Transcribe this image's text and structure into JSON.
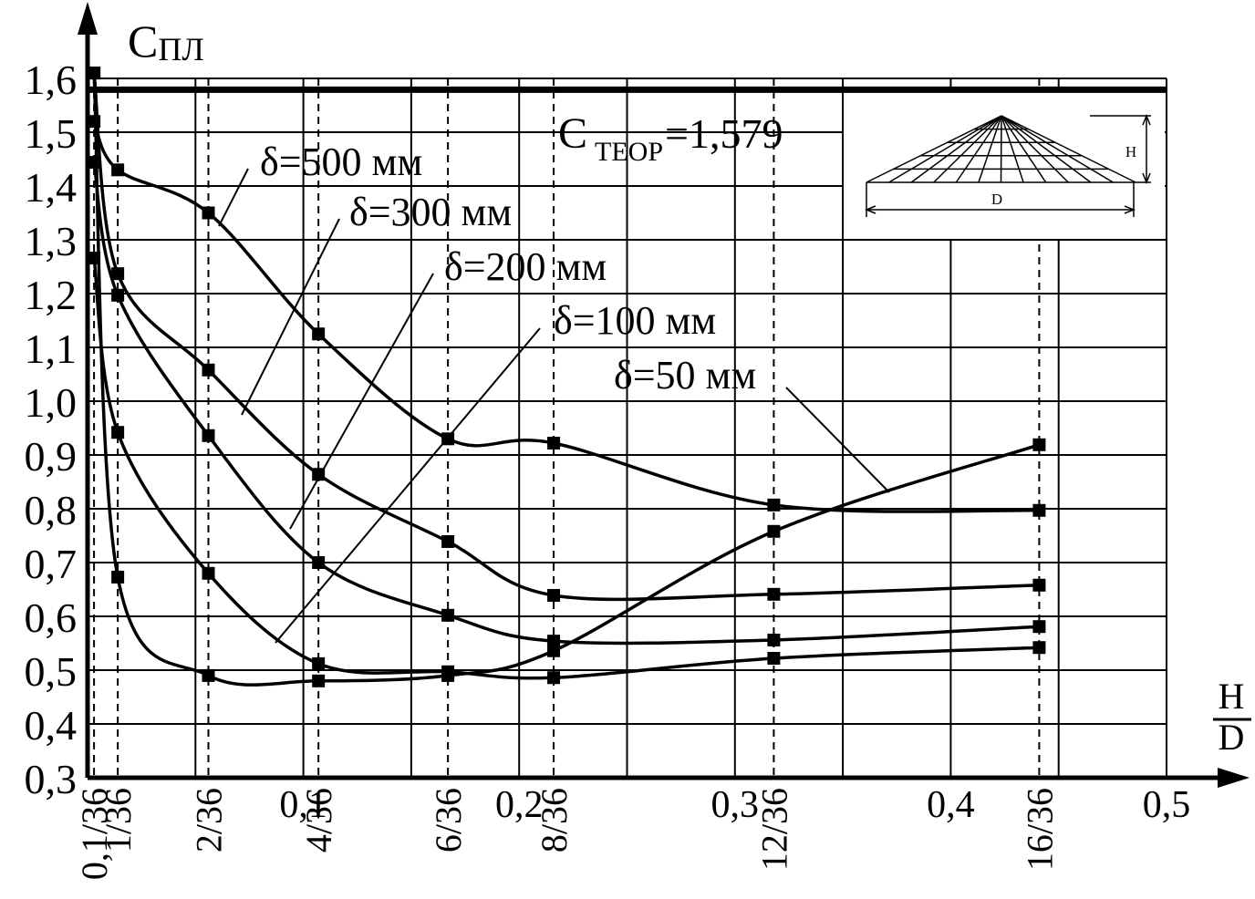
{
  "chart_data": {
    "type": "line",
    "y_label": {
      "symbol": "C",
      "subscript": "ПЛ"
    },
    "x_label": {
      "numerator": "H",
      "denominator": "D"
    },
    "xlim": [
      0,
      0.5
    ],
    "ylim": [
      0.3,
      1.6
    ],
    "xticks": [
      {
        "value": 0.1,
        "label": "0,1"
      },
      {
        "value": 0.2,
        "label": "0,2"
      },
      {
        "value": 0.3,
        "label": "0,3"
      },
      {
        "value": 0.4,
        "label": "0,4"
      },
      {
        "value": 0.5,
        "label": "0,5"
      }
    ],
    "xgrid": [
      0.05,
      0.15,
      0.25,
      0.35,
      0.45
    ],
    "xticks_fraction": [
      {
        "value": 0.003,
        "label": "0,1/36"
      },
      {
        "value": 0.014,
        "label": "1/36"
      },
      {
        "value": 0.056,
        "label": "2/36"
      },
      {
        "value": 0.107,
        "label": "4/36"
      },
      {
        "value": 0.167,
        "label": "6/36"
      },
      {
        "value": 0.216,
        "label": "8/36"
      },
      {
        "value": 0.318,
        "label": "12/36"
      },
      {
        "value": 0.441,
        "label": "16/36"
      }
    ],
    "yticks": [
      {
        "value": 0.3,
        "label": "0,3"
      },
      {
        "value": 0.4,
        "label": "0,4"
      },
      {
        "value": 0.5,
        "label": "0,5"
      },
      {
        "value": 0.6,
        "label": "0,6"
      },
      {
        "value": 0.7,
        "label": "0,7"
      },
      {
        "value": 0.8,
        "label": "0,8"
      },
      {
        "value": 0.9,
        "label": "0,9"
      },
      {
        "value": 1.0,
        "label": "1,0"
      },
      {
        "value": 1.1,
        "label": "1,1"
      },
      {
        "value": 1.2,
        "label": "1,2"
      },
      {
        "value": 1.3,
        "label": "1,3"
      },
      {
        "value": 1.4,
        "label": "1,4"
      },
      {
        "value": 1.5,
        "label": "1,5"
      },
      {
        "value": 1.6,
        "label": "1,6"
      }
    ],
    "grid": true,
    "x": [
      0.003,
      0.014,
      0.056,
      0.107,
      0.167,
      0.216,
      0.318,
      0.441
    ],
    "series": [
      {
        "name": "δ=500 мм",
        "color": "#000000",
        "values": [
          1.52,
          1.43,
          1.35,
          1.125,
          0.93,
          0.922,
          0.807,
          0.797
        ]
      },
      {
        "name": "δ=300 мм",
        "color": "#000000",
        "values": [
          1.61,
          1.237,
          1.058,
          0.864,
          0.739,
          0.639,
          0.641,
          0.658
        ]
      },
      {
        "name": "δ=200 мм",
        "color": "#000000",
        "values": [
          1.444,
          1.197,
          0.936,
          0.7,
          0.602,
          0.554,
          0.556,
          0.581
        ]
      },
      {
        "name": "δ=100 мм",
        "color": "#000000",
        "values": [
          1.266,
          0.942,
          0.68,
          0.512,
          0.497,
          0.486,
          0.522,
          0.542
        ]
      },
      {
        "name": "δ=50 мм",
        "color": "#000000",
        "values": [
          1.61,
          0.673,
          0.49,
          0.48,
          0.49,
          0.536,
          0.758,
          0.919
        ]
      }
    ],
    "reference_line": {
      "value": 1.579,
      "symbol": "C",
      "subscript": "ТЕОР",
      "label": "=1,579"
    },
    "inset": {
      "height_label": "H",
      "diameter_label": "D"
    }
  }
}
